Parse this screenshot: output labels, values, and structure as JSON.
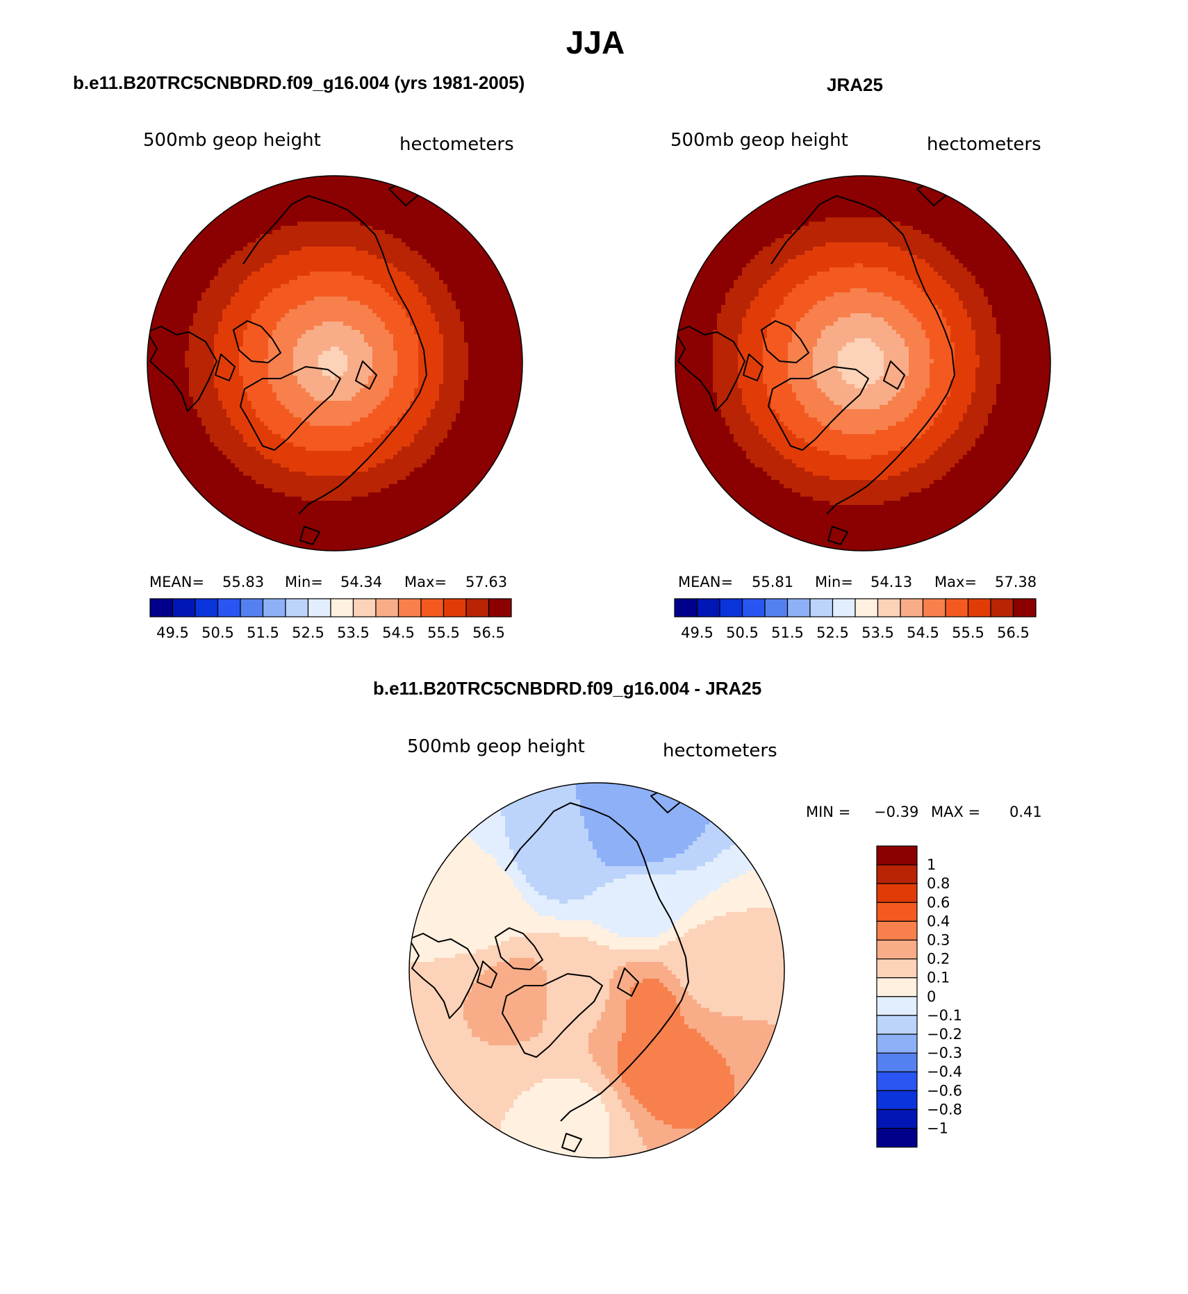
{
  "main_title": "JJA",
  "panels": [
    {
      "title": "b.e11.B20TRC5CNBDRD.f09_g16.004 (yrs 1981-2005)",
      "left_label": "500mb geop height",
      "right_label": "hectometers",
      "stats": {
        "mean_label": "MEAN=",
        "mean": "55.83",
        "min_label": "Min=",
        "min": "54.34",
        "max_label": "Max=",
        "max": "57.63"
      },
      "field": {
        "pole_value": 53.7,
        "rise_per_degree": 0.075,
        "lon_amplitude": 0.22,
        "lon_phase": 110
      }
    },
    {
      "title": "JRA25",
      "left_label": "500mb geop height",
      "right_label": "hectometers",
      "stats": {
        "mean_label": "MEAN=",
        "mean": "55.81",
        "min_label": "Min=",
        "min": "54.13",
        "max_label": "Max=",
        "max": "57.38"
      },
      "field": {
        "pole_value": 53.5,
        "rise_per_degree": 0.078,
        "lon_amplitude": 0.2,
        "lon_phase": 110
      }
    },
    {
      "title": "b.e11.B20TRC5CNBDRD.f09_g16.004 - JRA25",
      "left_label": "500mb geop height",
      "right_label": "hectometers",
      "minmax": {
        "min_label": "MIN =",
        "min": "−0.39",
        "max_label": "MAX =",
        "max": "0.41"
      }
    }
  ],
  "colorbar_abs": {
    "levels": [
      "49.5",
      "50.5",
      "51.5",
      "52.5",
      "53.5",
      "54.5",
      "55.5",
      "56.5"
    ],
    "colors": [
      "#00008b",
      "#0017b6",
      "#0a34dc",
      "#2956f2",
      "#5580f0",
      "#8db0f6",
      "#bcd4fb",
      "#e2eefd",
      "#fff0e0",
      "#fcd2b8",
      "#f8ad88",
      "#f7804d",
      "#f45a20",
      "#e13c08",
      "#b82404",
      "#8b0000"
    ]
  },
  "colorbar_diff": {
    "levels": [
      "1",
      "0.8",
      "0.6",
      "0.4",
      "0.3",
      "0.2",
      "0.1",
      "0",
      "−0.1",
      "−0.2",
      "−0.3",
      "−0.4",
      "−0.6",
      "−0.8",
      "−1"
    ],
    "colors": [
      "#8b0000",
      "#b82404",
      "#e13c08",
      "#f45a20",
      "#f7804d",
      "#f8ad88",
      "#fcd2b8",
      "#fff0e0",
      "#e2eefd",
      "#bcd4fb",
      "#8db0f6",
      "#5580f0",
      "#2956f2",
      "#0a34dc",
      "#0017b6",
      "#00008b"
    ]
  },
  "diff_field": [
    {
      "lat": 72,
      "lon": 120,
      "value": 0.32
    },
    {
      "lat": 60,
      "lon": 145,
      "value": 0.35
    },
    {
      "lat": 82,
      "lon": 220,
      "value": 0.18
    },
    {
      "lat": 68,
      "lon": 255,
      "value": 0.22
    },
    {
      "lat": 68,
      "lon": 35,
      "value": -0.05
    },
    {
      "lat": 52,
      "lon": 15,
      "value": -0.3
    },
    {
      "lat": 58,
      "lon": 340,
      "value": -0.15
    },
    {
      "lat": 55,
      "lon": 300,
      "value": 0.05
    },
    {
      "lat": 62,
      "lon": 90,
      "value": 0.15
    },
    {
      "lat": 50,
      "lon": 190,
      "value": 0.08
    }
  ]
}
